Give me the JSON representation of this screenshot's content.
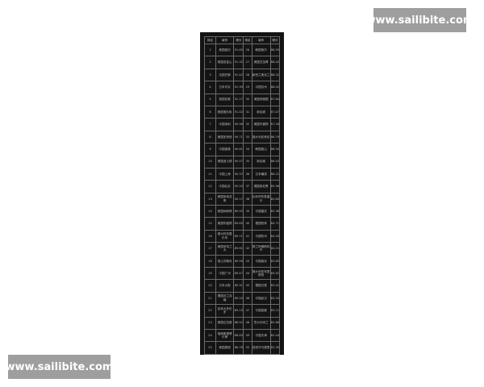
{
  "watermarks": [
    "www.sailibite.com",
    "www.sailibite.com"
  ],
  "table": {
    "headers": [
      "排名",
      "城市",
      "得分",
      "排名",
      "城市",
      "得分"
    ],
    "rows": [
      [
        "1",
        "美国纽约",
        "91.65",
        "26",
        "韩国首尔",
        "88.59"
      ],
      [
        "2",
        "美国旧金山",
        "91.32",
        "27",
        "美国芝加哥",
        "88.42"
      ],
      [
        "3",
        "法国巴黎",
        "91.42",
        "28",
        "新西兰奥克兰",
        "88.31"
      ],
      [
        "4",
        "日本东京",
        "91.39",
        "29",
        "中国苏州",
        "88.02"
      ],
      [
        "5",
        "英国伦敦",
        "91.27",
        "30",
        "美国西雅图",
        "87.84"
      ],
      [
        "6",
        "美国洛杉矶",
        "91.02",
        "31",
        "新加坡",
        "87.47"
      ],
      [
        "7",
        "中国深圳",
        "90.96",
        "32",
        "美国华盛顿",
        "87.26"
      ],
      [
        "8",
        "美国圣荷西",
        "90.71",
        "33",
        "澳大利亚悉尼",
        "86.79"
      ],
      [
        "9",
        "中国香港",
        "90.61",
        "34",
        "韩国釜山",
        "86.50"
      ],
      [
        "10",
        "美国波士顿",
        "90.57",
        "35",
        "新加坡",
        "86.42"
      ],
      [
        "11",
        "中国上海",
        "90.37",
        "36",
        "日本横滨",
        "86.21"
      ],
      [
        "12",
        "中国北京",
        "90.20",
        "37",
        "德国慕尼黑",
        "85.96"
      ],
      [
        "13",
        "美国圣地亚哥",
        "90.17",
        "38",
        "比利时布鲁塞尔",
        "85.80"
      ],
      [
        "14",
        "美国休斯顿",
        "89.95",
        "39",
        "中国重庆",
        "85.36"
      ],
      [
        "15",
        "美国华盛顿",
        "89.85",
        "40",
        "德国柏林",
        "84.71"
      ],
      [
        "16",
        "澳大利亚墨尔本",
        "89.71",
        "41",
        "中国杭州",
        "84.50"
      ],
      [
        "17",
        "美国亚特兰大",
        "89.61",
        "42",
        "荷兰阿姆斯特丹",
        "84.21"
      ],
      [
        "18",
        "瑞士苏黎世",
        "89.56",
        "43",
        "中国南京",
        "83.85"
      ],
      [
        "19",
        "中国广州",
        "89.47",
        "44",
        "澳大利亚布里斯班",
        "83.52"
      ],
      [
        "20",
        "日本大阪",
        "89.31",
        "45",
        "德国汉堡",
        "83.41"
      ],
      [
        "21",
        "德国法兰克福",
        "89.20",
        "46",
        "中国武汉",
        "83.20"
      ],
      [
        "22",
        "加拿大多伦多",
        "89.15",
        "47",
        "中国成都",
        "83.11"
      ],
      [
        "23",
        "美国达拉斯",
        "88.92",
        "48",
        "意大利米兰",
        "82.86"
      ],
      [
        "24",
        "瑞典斯德哥尔摩",
        "88.83",
        "49",
        "中国天津",
        "82.44"
      ],
      [
        "25",
        "美国费城",
        "88.76",
        "50",
        "西班牙马德里",
        "82.30"
      ]
    ]
  }
}
